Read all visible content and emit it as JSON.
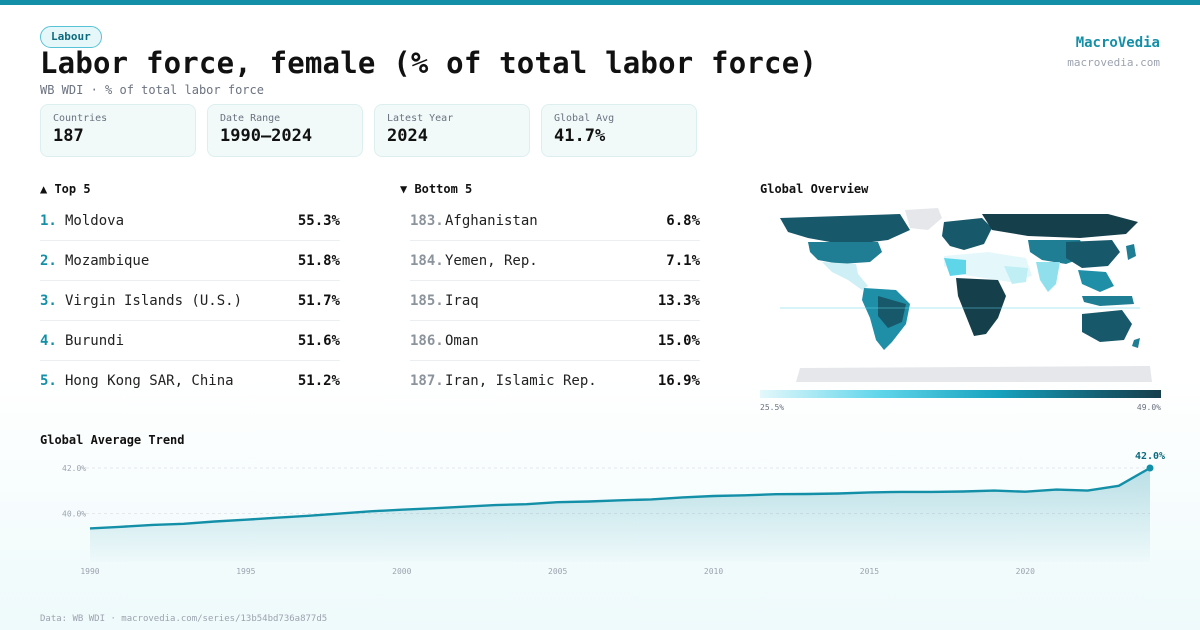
{
  "header": {
    "badge": "Labour",
    "title": "Labor force, female (% of total labor force)",
    "subtitle": "WB WDI · % of total labor force",
    "brand": "MacroVedia",
    "brand_url": "macrovedia.com"
  },
  "stats": [
    {
      "label": "Countries",
      "value": "187"
    },
    {
      "label": "Date Range",
      "value": "1990–2024"
    },
    {
      "label": "Latest Year",
      "value": "2024"
    },
    {
      "label": "Global Avg",
      "value": "41.7%"
    }
  ],
  "top5": {
    "heading": "▲ Top 5",
    "items": [
      {
        "rank": "1.",
        "name": "Moldova",
        "value": "55.3%"
      },
      {
        "rank": "2.",
        "name": "Mozambique",
        "value": "51.8%"
      },
      {
        "rank": "3.",
        "name": "Virgin Islands (U.S.)",
        "value": "51.7%"
      },
      {
        "rank": "4.",
        "name": "Burundi",
        "value": "51.6%"
      },
      {
        "rank": "5.",
        "name": "Hong Kong SAR, China",
        "value": "51.2%"
      }
    ]
  },
  "bottom5": {
    "heading": "▼ Bottom 5",
    "items": [
      {
        "rank": "183.",
        "name": "Afghanistan",
        "value": "6.8%"
      },
      {
        "rank": "184.",
        "name": "Yemen, Rep.",
        "value": "7.1%"
      },
      {
        "rank": "185.",
        "name": "Iraq",
        "value": "13.3%"
      },
      {
        "rank": "186.",
        "name": "Oman",
        "value": "15.0%"
      },
      {
        "rank": "187.",
        "name": "Iran, Islamic Rep.",
        "value": "16.9%"
      }
    ]
  },
  "map": {
    "heading": "Global Overview",
    "legend_min": "25.5%",
    "legend_max": "49.0%"
  },
  "trend": {
    "heading": "Global Average Trend"
  },
  "footer": "Data: WB WDI · macrovedia.com/series/13b54bd736a877d5",
  "colors": {
    "accent": "#1390a8",
    "map_dark": "#17596b",
    "map_mid": "#1f8fa8",
    "map_light": "#9fe3ee",
    "map_nodata": "#e5e7eb"
  },
  "chart_data": {
    "type": "area",
    "title": "Global Average Trend",
    "x": [
      1990,
      1991,
      1992,
      1993,
      1994,
      1995,
      1996,
      1997,
      1998,
      1999,
      2000,
      2001,
      2002,
      2003,
      2004,
      2005,
      2006,
      2007,
      2008,
      2009,
      2010,
      2011,
      2012,
      2013,
      2014,
      2015,
      2016,
      2017,
      2018,
      2019,
      2020,
      2021,
      2022,
      2023,
      2024
    ],
    "values": [
      39.35,
      39.42,
      39.5,
      39.55,
      39.65,
      39.73,
      39.82,
      39.9,
      40.0,
      40.1,
      40.17,
      40.23,
      40.3,
      40.37,
      40.41,
      40.5,
      40.53,
      40.58,
      40.62,
      40.71,
      40.77,
      40.8,
      40.85,
      40.86,
      40.88,
      40.93,
      40.95,
      40.95,
      40.97,
      41.01,
      40.96,
      41.05,
      41.01,
      41.22,
      42.0
    ],
    "ylim": [
      38.4,
      42.0
    ],
    "yticks": [
      40.0,
      42.0
    ],
    "ytick_labels": [
      "40.0%",
      "42.0%"
    ],
    "xticks": [
      1990,
      1995,
      2000,
      2005,
      2010,
      2015,
      2020
    ],
    "end_label": "42.0%",
    "grid": true
  }
}
